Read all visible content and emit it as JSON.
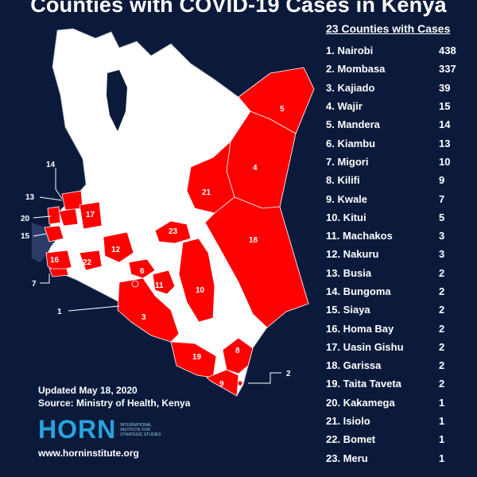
{
  "title": "Counties with COVID-19 Cases in Kenya",
  "list": {
    "heading": "23 Counties with Cases",
    "items": [
      {
        "name": "1. Nairobi",
        "value": "438"
      },
      {
        "name": "2. Mombasa",
        "value": "337"
      },
      {
        "name": "3. Kajiado",
        "value": "39"
      },
      {
        "name": "4. Wajir",
        "value": "15"
      },
      {
        "name": "5. Mandera",
        "value": "14"
      },
      {
        "name": "6. Kiambu",
        "value": "13"
      },
      {
        "name": "7. Migori",
        "value": "10"
      },
      {
        "name": "8. Kilifi",
        "value": "9"
      },
      {
        "name": "9. Kwale",
        "value": "7"
      },
      {
        "name": "10. Kitui",
        "value": "5"
      },
      {
        "name": "11. Machakos",
        "value": "3"
      },
      {
        "name": "12. Nakuru",
        "value": "3"
      },
      {
        "name": "13. Busia",
        "value": "2"
      },
      {
        "name": "14. Bungoma",
        "value": "2"
      },
      {
        "name": "15. Siaya",
        "value": "2"
      },
      {
        "name": "16. Homa Bay",
        "value": "2"
      },
      {
        "name": "17. Uasin Gishu",
        "value": "2"
      },
      {
        "name": "18. Garissa",
        "value": "2"
      },
      {
        "name": "19. Taita Taveta",
        "value": "2"
      },
      {
        "name": "20. Kakamega",
        "value": "1"
      },
      {
        "name": "21. Isiolo",
        "value": "1"
      },
      {
        "name": "22. Bomet",
        "value": "1"
      },
      {
        "name": "23. Meru",
        "value": "1"
      }
    ]
  },
  "map_labels": [
    "1",
    "2",
    "3",
    "4",
    "5",
    "6",
    "7",
    "8",
    "9",
    "10",
    "11",
    "12",
    "13",
    "14",
    "15",
    "16",
    "17",
    "18",
    "19",
    "20",
    "21",
    "22",
    "23"
  ],
  "credits": {
    "updated": "Updated May 18, 2020",
    "source": "Source: Ministry of Health, Kenya"
  },
  "logo": {
    "word": "HORN",
    "subtitle": "International Institute for Strategic Studies"
  },
  "url": "www.horninstitute.org",
  "colors": {
    "background": "#0b1a3b",
    "case_county": "#ff0000",
    "no_case_county": "#ffffff",
    "water": "#2b3b66",
    "logo_accent": "#29a3de"
  }
}
